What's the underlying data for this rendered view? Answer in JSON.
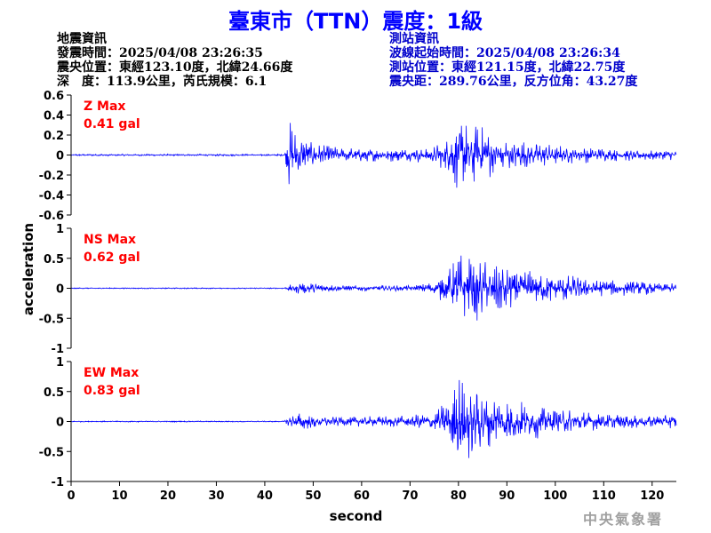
{
  "title": "臺東市（TTN）震度：1級",
  "quake_info": {
    "heading": "地震資訊",
    "origin_time": "發震時間：2025/04/08 23:26:35",
    "epicenter": "震央位置：東經123.10度，北緯24.66度",
    "depth_magnitude": "深　度：113.9公里，芮氏規模：6.1"
  },
  "station_info": {
    "heading": "測站資訊",
    "wave_start": "波線起始時間：2025/04/08 23:26:34",
    "station_location": "測站位置：東經121.15度，北緯22.75度",
    "distance_azimuth": "震央距：289.76公里，反方位角：43.27度"
  },
  "agency": "中央氣象署",
  "colors": {
    "trace": "#0000ff",
    "max_label": "#ff0000",
    "title": "#0000ff"
  },
  "chart_data": {
    "type": "line",
    "xlabel": "second",
    "ylabel": "acceleration",
    "xlim": [
      0,
      125
    ],
    "x_ticks": [
      "0",
      "10",
      "20",
      "30",
      "40",
      "50",
      "60",
      "70",
      "80",
      "90",
      "100",
      "110",
      "120"
    ],
    "grid": false,
    "panels": [
      {
        "name": "Z",
        "max_label": "Z Max",
        "max_value": "0.41 gal",
        "ylim": [
          -0.6,
          0.6
        ],
        "y_ticks": [
          "0.6",
          "0.4",
          "0.2",
          "0",
          "-0.2",
          "-0.4",
          "-0.6"
        ],
        "envelope": [
          [
            0,
            0.01
          ],
          [
            44,
            0.01
          ],
          [
            45,
            0.38
          ],
          [
            46,
            0.28
          ],
          [
            48,
            0.16
          ],
          [
            52,
            0.1
          ],
          [
            60,
            0.07
          ],
          [
            70,
            0.07
          ],
          [
            75,
            0.09
          ],
          [
            78,
            0.2
          ],
          [
            80,
            0.4
          ],
          [
            82,
            0.32
          ],
          [
            85,
            0.3
          ],
          [
            88,
            0.22
          ],
          [
            92,
            0.16
          ],
          [
            100,
            0.1
          ],
          [
            110,
            0.07
          ],
          [
            125,
            0.05
          ]
        ]
      },
      {
        "name": "NS",
        "max_label": "NS Max",
        "max_value": "0.62 gal",
        "ylim": [
          -1,
          1
        ],
        "y_ticks": [
          "1",
          "0.5",
          "0",
          "-0.5",
          "-1"
        ],
        "envelope": [
          [
            0,
            0.01
          ],
          [
            44,
            0.01
          ],
          [
            45,
            0.06
          ],
          [
            47,
            0.1
          ],
          [
            50,
            0.1
          ],
          [
            55,
            0.05
          ],
          [
            70,
            0.05
          ],
          [
            75,
            0.12
          ],
          [
            78,
            0.35
          ],
          [
            80,
            0.6
          ],
          [
            84,
            0.55
          ],
          [
            90,
            0.4
          ],
          [
            100,
            0.25
          ],
          [
            110,
            0.15
          ],
          [
            125,
            0.08
          ]
        ]
      },
      {
        "name": "EW",
        "max_label": "EW Max",
        "max_value": "0.83 gal",
        "ylim": [
          -1,
          1
        ],
        "y_ticks": [
          "1",
          "0.5",
          "0",
          "-0.5",
          "-1"
        ],
        "envelope": [
          [
            0,
            0.01
          ],
          [
            44,
            0.01
          ],
          [
            45,
            0.1
          ],
          [
            47,
            0.15
          ],
          [
            50,
            0.12
          ],
          [
            55,
            0.08
          ],
          [
            70,
            0.1
          ],
          [
            75,
            0.18
          ],
          [
            78,
            0.4
          ],
          [
            80,
            0.82
          ],
          [
            83,
            0.6
          ],
          [
            88,
            0.45
          ],
          [
            95,
            0.3
          ],
          [
            105,
            0.18
          ],
          [
            115,
            0.12
          ],
          [
            125,
            0.12
          ]
        ]
      }
    ]
  }
}
